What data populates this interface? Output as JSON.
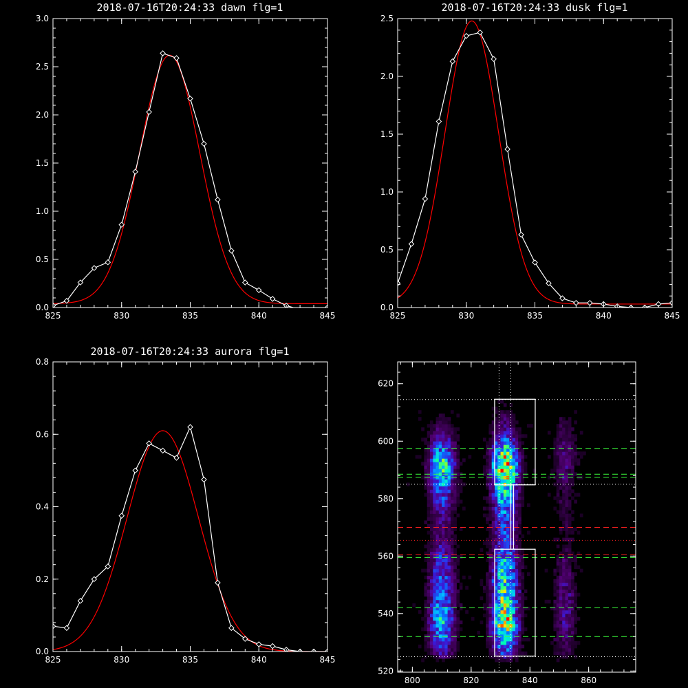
{
  "chart_data": [
    {
      "id": "dawn",
      "type": "line",
      "title": "2018-07-16T20:24:33 dawn flg=1",
      "xlim": [
        825,
        845
      ],
      "ylim": [
        0,
        3.0
      ],
      "xticks": [
        825,
        830,
        835,
        840,
        845
      ],
      "xtick_labels": [
        "825",
        "830",
        "835",
        "840",
        "845"
      ],
      "yticks": [
        0,
        0.5,
        1.0,
        1.5,
        2.0,
        2.5,
        3.0
      ],
      "ytick_labels": [
        "0.0",
        "0.5",
        "1.0",
        "1.5",
        "2.0",
        "2.5",
        "3.0"
      ],
      "series": [
        {
          "role": "measured",
          "color": "#ffffff",
          "marker": "diamond",
          "x": [
            825,
            826,
            827,
            828,
            829,
            830,
            831,
            832,
            833,
            834,
            835,
            836,
            837,
            838,
            839,
            840,
            841,
            842,
            843,
            844,
            845
          ],
          "y": [
            0.02,
            0.07,
            0.26,
            0.41,
            0.47,
            0.86,
            1.41,
            2.03,
            2.64,
            2.59,
            2.17,
            1.7,
            1.12,
            0.59,
            0.26,
            0.18,
            0.09,
            0.02,
            -0.02,
            -0.02,
            0.0
          ]
        },
        {
          "role": "fit",
          "color": "#ff0000",
          "model": "gaussian",
          "params": {
            "amplitude": 2.58,
            "center": 833.5,
            "sigma": 2.2,
            "offset": 0.04
          }
        }
      ]
    },
    {
      "id": "dusk",
      "type": "line",
      "title": "2018-07-16T20:24:33 dusk flg=1",
      "xlim": [
        825,
        845
      ],
      "ylim": [
        0,
        2.5
      ],
      "xticks": [
        825,
        830,
        835,
        840,
        845
      ],
      "xtick_labels": [
        "825",
        "830",
        "835",
        "840",
        "845"
      ],
      "yticks": [
        0,
        0.5,
        1.0,
        1.5,
        2.0,
        2.5
      ],
      "ytick_labels": [
        "0.0",
        "0.5",
        "1.0",
        "1.5",
        "2.0",
        "2.5"
      ],
      "series": [
        {
          "role": "measured",
          "color": "#ffffff",
          "marker": "diamond",
          "x": [
            825,
            826,
            827,
            828,
            829,
            830,
            831,
            832,
            833,
            834,
            835,
            836,
            837,
            838,
            839,
            840,
            841,
            842,
            843,
            844,
            845
          ],
          "y": [
            0.21,
            0.55,
            0.94,
            1.61,
            2.13,
            2.35,
            2.38,
            2.15,
            1.37,
            0.63,
            0.39,
            0.21,
            0.08,
            0.04,
            0.04,
            0.03,
            0.01,
            0.0,
            0.0,
            0.03,
            0.04
          ]
        },
        {
          "role": "fit",
          "color": "#ff0000",
          "model": "gaussian",
          "params": {
            "amplitude": 2.45,
            "center": 830.4,
            "sigma": 1.95,
            "offset": 0.03
          }
        }
      ]
    },
    {
      "id": "aurora",
      "type": "line",
      "title": "2018-07-16T20:24:33 aurora flg=1",
      "xlim": [
        825,
        845
      ],
      "ylim": [
        0,
        0.8
      ],
      "xticks": [
        825,
        830,
        835,
        840,
        845
      ],
      "xtick_labels": [
        "825",
        "830",
        "835",
        "840",
        "845"
      ],
      "yticks": [
        0,
        0.2,
        0.4,
        0.6,
        0.8
      ],
      "ytick_labels": [
        "0.0",
        "0.2",
        "0.4",
        "0.6",
        "0.8"
      ],
      "series": [
        {
          "role": "measured",
          "color": "#ffffff",
          "marker": "diamond",
          "x": [
            825,
            826,
            827,
            828,
            829,
            830,
            831,
            832,
            833,
            834,
            835,
            836,
            837,
            838,
            839,
            840,
            841,
            842,
            843,
            844,
            845
          ],
          "y": [
            0.07,
            0.065,
            0.14,
            0.2,
            0.235,
            0.375,
            0.5,
            0.575,
            0.555,
            0.535,
            0.62,
            0.475,
            0.19,
            0.065,
            0.035,
            0.02,
            0.015,
            0.005,
            0.0,
            0.0,
            0.0
          ]
        },
        {
          "role": "fit",
          "color": "#ff0000",
          "model": "gaussian",
          "params": {
            "amplitude": 0.61,
            "center": 833.0,
            "sigma": 2.6,
            "offset": 0.0
          }
        }
      ]
    },
    {
      "id": "image",
      "type": "heatmap",
      "title": "",
      "xlim": [
        795,
        876
      ],
      "ylim": [
        519.6,
        627.6
      ],
      "xticks": [
        800,
        820,
        840,
        860
      ],
      "xtick_labels": [
        "800",
        "820",
        "840",
        "860"
      ],
      "yticks": [
        520,
        540,
        560,
        580,
        600,
        620
      ],
      "ytick_labels": [
        "520",
        "540",
        "560",
        "580",
        "600",
        "620"
      ],
      "colormap": [
        "#000000",
        "#2a003a",
        "#55007a",
        "#3a1ad8",
        "#0a6cff",
        "#00c8ff",
        "#00ffb0",
        "#7cff3c",
        "#ffe600",
        "#ff6a00",
        "#ff0000"
      ],
      "columns": [
        {
          "center": 810.0,
          "width": 7,
          "intensity_by_y": [
            [
              526,
              0.25
            ],
            [
              532,
              0.45
            ],
            [
              538,
              0.55
            ],
            [
              546,
              0.45
            ],
            [
              554,
              0.35
            ],
            [
              560,
              0.3
            ],
            [
              566,
              0.2
            ],
            [
              574,
              0.2
            ],
            [
              580,
              0.35
            ],
            [
              586,
              0.5
            ],
            [
              592,
              0.7
            ],
            [
              598,
              0.4
            ],
            [
              606,
              0.12
            ]
          ]
        },
        {
          "center": 831.5,
          "width": 7,
          "intensity_by_y": [
            [
              526,
              0.35
            ],
            [
              532,
              0.6
            ],
            [
              536,
              0.85
            ],
            [
              540,
              0.75
            ],
            [
              546,
              0.7
            ],
            [
              552,
              0.65
            ],
            [
              558,
              0.55
            ],
            [
              562,
              0.4
            ],
            [
              566,
              0.35
            ],
            [
              574,
              0.4
            ],
            [
              580,
              0.55
            ],
            [
              586,
              0.75
            ],
            [
              591,
              1.0
            ],
            [
              596,
              0.7
            ],
            [
              602,
              0.3
            ],
            [
              610,
              0.1
            ]
          ]
        },
        {
          "center": 852.0,
          "width": 6,
          "intensity_by_y": [
            [
              526,
              0.12
            ],
            [
              534,
              0.2
            ],
            [
              540,
              0.25
            ],
            [
              548,
              0.2
            ],
            [
              556,
              0.15
            ],
            [
              564,
              0.08
            ],
            [
              580,
              0.1
            ],
            [
              590,
              0.18
            ],
            [
              598,
              0.2
            ],
            [
              606,
              0.1
            ]
          ]
        }
      ],
      "overlays": {
        "white_dotted_h": [
          525,
          585,
          614.5
        ],
        "white_dotted_v": [
          829.5,
          833.5
        ],
        "green_dashed_h": [
          532,
          542,
          559.5,
          587.5,
          588.5,
          597.5
        ],
        "red_dashed_h": [
          560.5,
          570
        ],
        "red_dotted_h": [
          565.5
        ],
        "white_boxes": [
          {
            "x0": 828,
            "x1": 841.8,
            "y0": 525.2,
            "y1": 562.4
          },
          {
            "x0": 828,
            "x1": 841.8,
            "y0": 584.8,
            "y1": 614.6
          }
        ],
        "white_connector": [
          [
            833.5,
            562.4
          ],
          [
            833.5,
            584.8
          ]
        ]
      }
    }
  ]
}
